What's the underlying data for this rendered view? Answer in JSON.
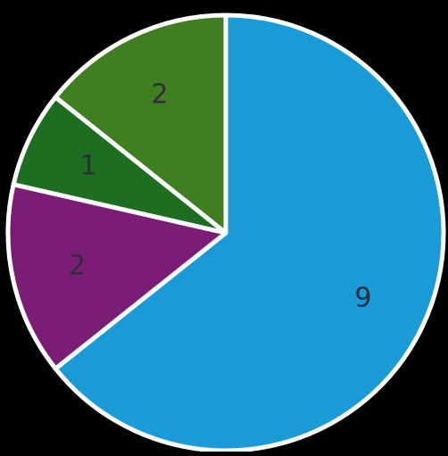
{
  "chart_data": {
    "type": "pie",
    "start_angle_deg": 0,
    "direction": "clockwise",
    "slice_border_color": "#ffffff",
    "legend": "none",
    "slices": [
      {
        "value": 9,
        "label": "9",
        "color": "#1a9bd7"
      },
      {
        "value": 2,
        "label": "2",
        "color": "#7b1d74"
      },
      {
        "value": 1,
        "label": "1",
        "color": "#1d6e20"
      },
      {
        "value": 2,
        "label": "2",
        "color": "#3f7f22"
      }
    ]
  }
}
